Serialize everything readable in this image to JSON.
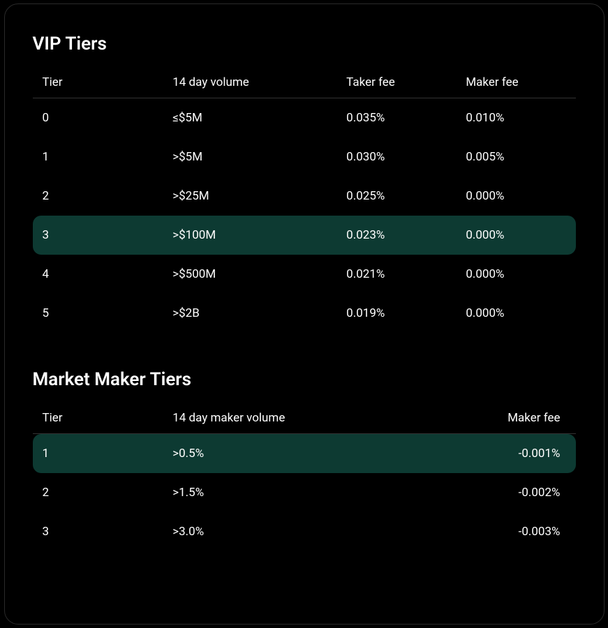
{
  "colors": {
    "background": "#000000",
    "panel_border": "#2a2a2a",
    "text": "#ffffff",
    "divider": "#333333",
    "highlight_bg": "#0d3a32"
  },
  "typography": {
    "title_fontsize": 26,
    "cell_fontsize": 17,
    "title_weight": 600,
    "cell_weight": 400
  },
  "vip": {
    "title": "VIP Tiers",
    "columns": [
      "Tier",
      "14 day volume",
      "Taker fee",
      "Maker fee"
    ],
    "highlighted_index": 3,
    "rows": [
      {
        "tier": "0",
        "volume": "≤$5M",
        "taker": "0.035%",
        "maker": "0.010%"
      },
      {
        "tier": "1",
        "volume": ">$5M",
        "taker": "0.030%",
        "maker": "0.005%"
      },
      {
        "tier": "2",
        "volume": ">$25M",
        "taker": "0.025%",
        "maker": "0.000%"
      },
      {
        "tier": "3",
        "volume": ">$100M",
        "taker": "0.023%",
        "maker": "0.000%"
      },
      {
        "tier": "4",
        "volume": ">$500M",
        "taker": "0.021%",
        "maker": "0.000%"
      },
      {
        "tier": "5",
        "volume": ">$2B",
        "taker": "0.019%",
        "maker": "0.000%"
      }
    ]
  },
  "mm": {
    "title": "Market Maker Tiers",
    "columns": [
      "Tier",
      "14 day maker volume",
      "Maker fee"
    ],
    "highlighted_index": 0,
    "rows": [
      {
        "tier": "1",
        "volume": ">0.5%",
        "maker": "-0.001%"
      },
      {
        "tier": "2",
        "volume": ">1.5%",
        "maker": "-0.002%"
      },
      {
        "tier": "3",
        "volume": ">3.0%",
        "maker": "-0.003%"
      }
    ]
  }
}
